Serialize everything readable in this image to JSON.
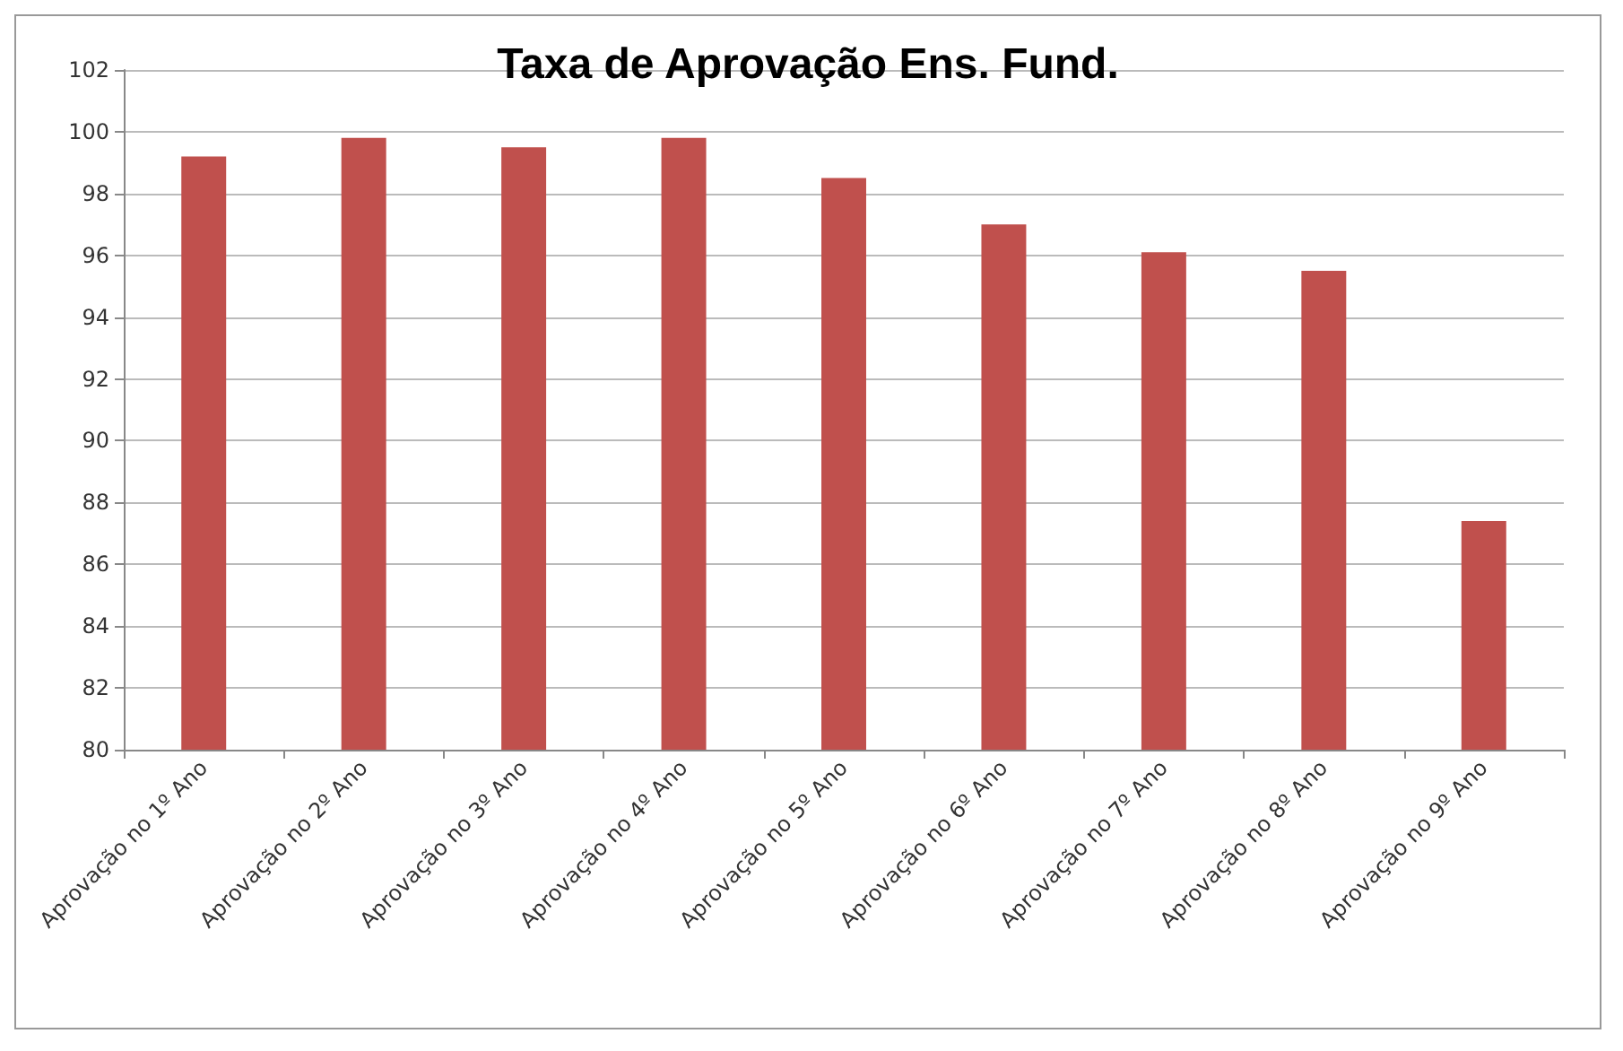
{
  "chart_data": {
    "type": "bar",
    "title": "Taxa de Aprovação Ens. Fund.",
    "categories": [
      "Aprovação no 1º Ano",
      "Aprovação no 2º Ano",
      "Aprovação no 3º Ano",
      "Aprovação no 4º Ano",
      "Aprovação no 5º Ano",
      "Aprovação no 6º Ano",
      "Aprovação no 7º Ano",
      "Aprovação no 8º Ano",
      "Aprovação no 9º Ano"
    ],
    "values": [
      99.2,
      99.8,
      99.5,
      99.8,
      98.5,
      97.0,
      96.1,
      95.5,
      87.4
    ],
    "color": "#c0504d",
    "ylim": [
      80,
      102
    ],
    "yticks": [
      80,
      82,
      84,
      86,
      88,
      90,
      92,
      94,
      96,
      98,
      100,
      102
    ],
    "grid": "y"
  }
}
